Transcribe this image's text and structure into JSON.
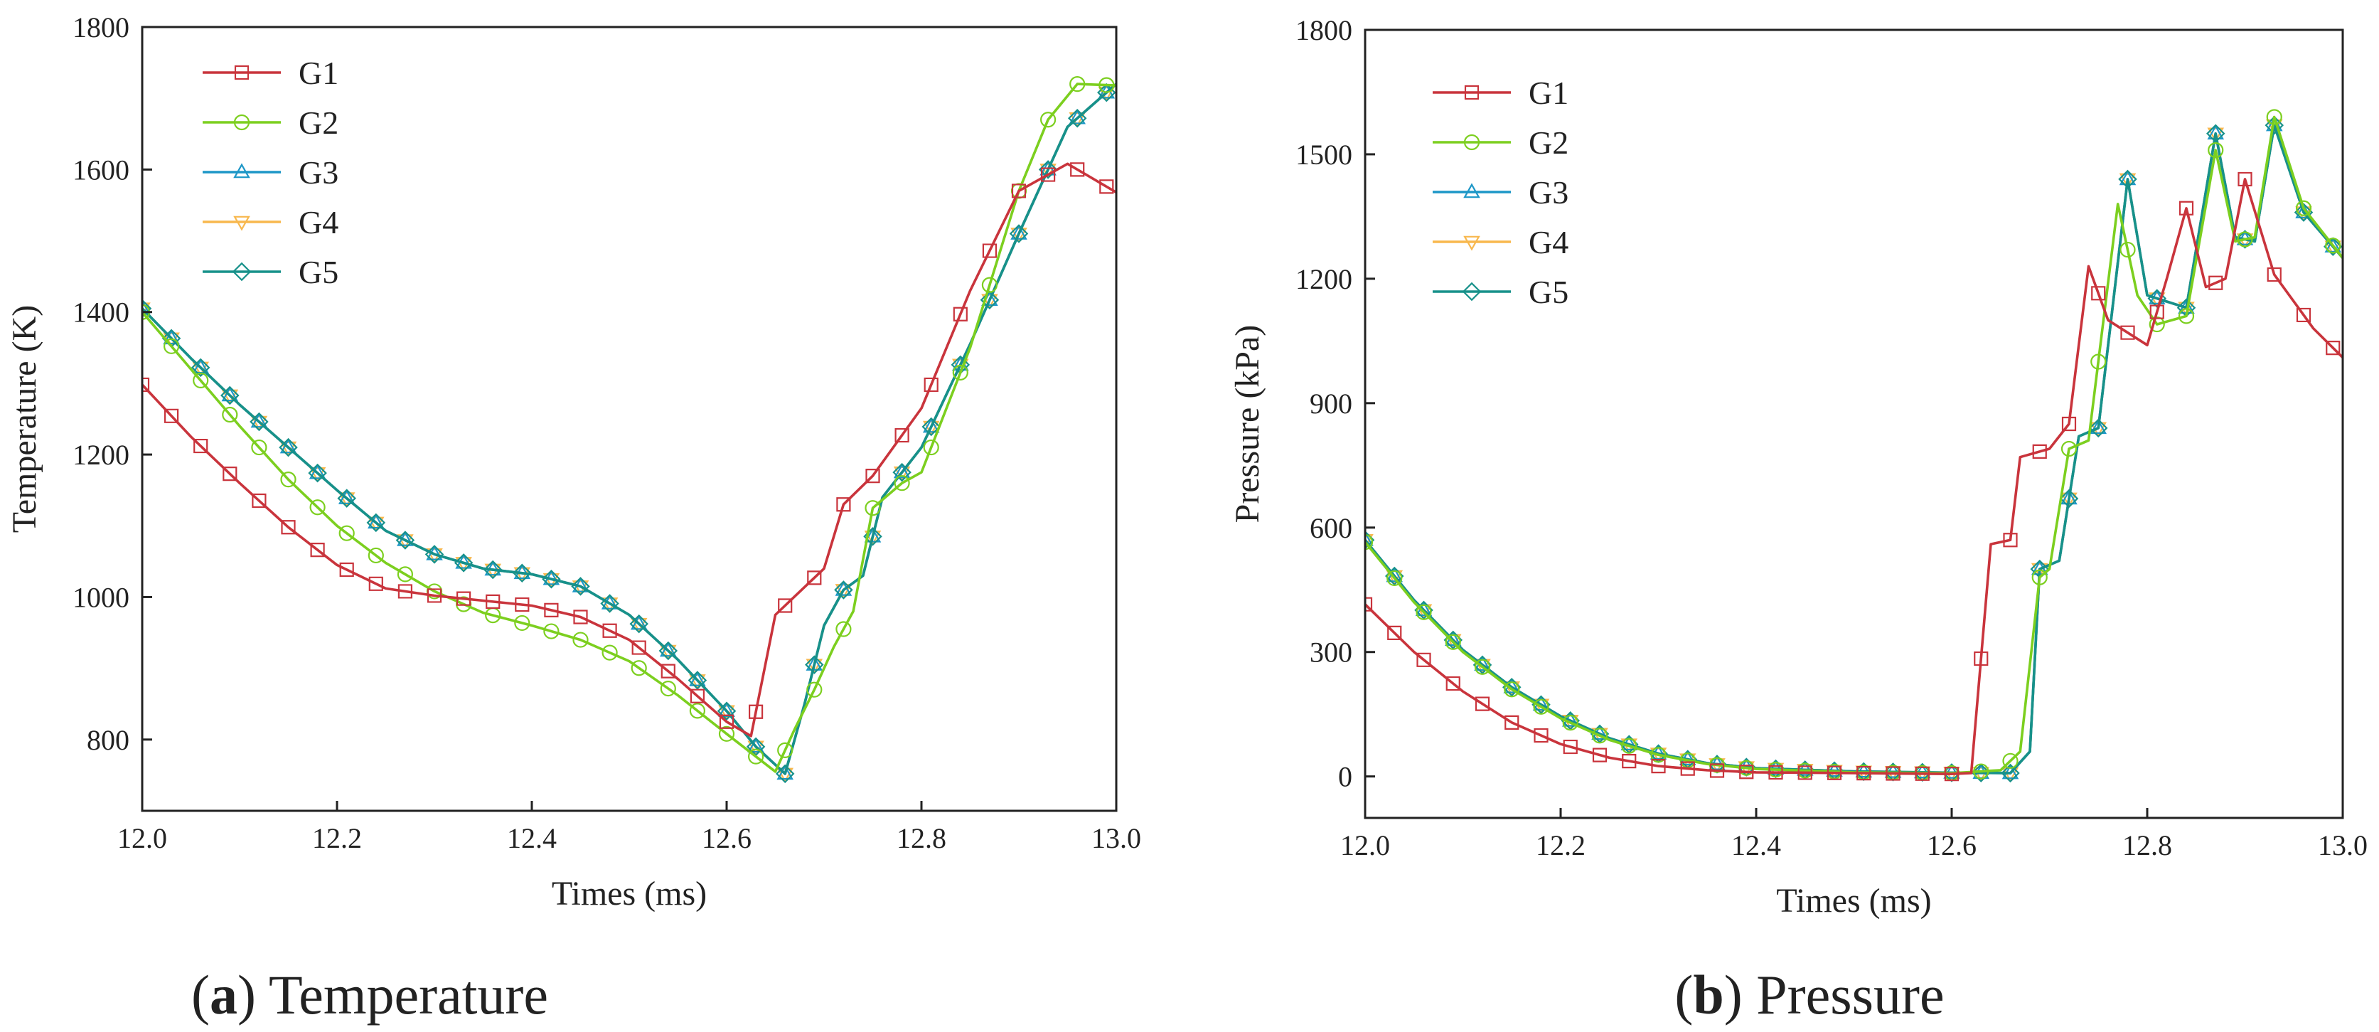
{
  "series_colors": {
    "G1": "#c9343c",
    "G2": "#7ccf1f",
    "G3": "#1d97c7",
    "G4": "#f8b84e",
    "G5": "#17918a"
  },
  "series_markers": {
    "G1": "square",
    "G2": "circle",
    "G3": "triangle-up",
    "G4": "triangle-down",
    "G5": "diamond"
  },
  "captions": {
    "a": {
      "letter": "a",
      "title": "Temperature"
    },
    "b": {
      "letter": "b",
      "title": "Pressure"
    }
  },
  "chart_data": [
    {
      "id": "a",
      "type": "line",
      "title": "(a) Temperature",
      "xlabel": "Times (ms)",
      "ylabel": "Temperature (K)",
      "xlim": [
        12.0,
        13.0
      ],
      "ylim": [
        700,
        1800
      ],
      "xticks": [
        "12.0",
        "12.2",
        "12.4",
        "12.6",
        "12.8",
        "13.0"
      ],
      "yticks": [
        "800",
        "1000",
        "1200",
        "1400",
        "1600",
        "1800"
      ],
      "legend": "top-left",
      "series": [
        {
          "name": "G1",
          "x": [
            12.0,
            12.05,
            12.1,
            12.15,
            12.2,
            12.25,
            12.3,
            12.35,
            12.4,
            12.45,
            12.5,
            12.55,
            12.6,
            12.625,
            12.65,
            12.7,
            12.72,
            12.75,
            12.8,
            12.85,
            12.9,
            12.95,
            13.0
          ],
          "y": [
            1298,
            1225,
            1160,
            1098,
            1045,
            1012,
            1002,
            995,
            988,
            972,
            940,
            885,
            825,
            805,
            975,
            1040,
            1130,
            1170,
            1265,
            1430,
            1570,
            1608,
            1568
          ]
        },
        {
          "name": "G2",
          "x": [
            12.0,
            12.05,
            12.1,
            12.15,
            12.2,
            12.25,
            12.3,
            12.35,
            12.4,
            12.45,
            12.5,
            12.55,
            12.6,
            12.65,
            12.67,
            12.69,
            12.71,
            12.73,
            12.75,
            12.78,
            12.8,
            12.85,
            12.9,
            12.93,
            12.96,
            13.0
          ],
          "y": [
            1400,
            1320,
            1240,
            1165,
            1100,
            1048,
            1008,
            978,
            960,
            940,
            910,
            862,
            808,
            755,
            815,
            870,
            930,
            980,
            1125,
            1160,
            1175,
            1350,
            1570,
            1670,
            1720,
            1718
          ]
        },
        {
          "name": "G3",
          "x": [
            12.0,
            12.05,
            12.1,
            12.15,
            12.2,
            12.25,
            12.3,
            12.35,
            12.4,
            12.45,
            12.5,
            12.55,
            12.6,
            12.63,
            12.66,
            12.68,
            12.7,
            12.72,
            12.74,
            12.76,
            12.8,
            12.85,
            12.9,
            12.95,
            13.0
          ],
          "y": [
            1405,
            1335,
            1270,
            1210,
            1150,
            1093,
            1060,
            1040,
            1032,
            1015,
            975,
            912,
            840,
            790,
            752,
            850,
            960,
            1010,
            1030,
            1140,
            1210,
            1355,
            1510,
            1660,
            1720
          ]
        },
        {
          "name": "G4",
          "x": [
            12.0,
            12.05,
            12.1,
            12.15,
            12.2,
            12.25,
            12.3,
            12.35,
            12.4,
            12.45,
            12.5,
            12.55,
            12.6,
            12.63,
            12.66,
            12.68,
            12.7,
            12.72,
            12.74,
            12.76,
            12.8,
            12.85,
            12.9,
            12.95,
            13.0
          ],
          "y": [
            1405,
            1335,
            1270,
            1210,
            1150,
            1093,
            1060,
            1040,
            1032,
            1015,
            975,
            912,
            840,
            790,
            752,
            850,
            960,
            1010,
            1030,
            1140,
            1210,
            1355,
            1510,
            1660,
            1720
          ]
        },
        {
          "name": "G5",
          "x": [
            12.0,
            12.05,
            12.1,
            12.15,
            12.2,
            12.25,
            12.3,
            12.35,
            12.4,
            12.45,
            12.5,
            12.55,
            12.6,
            12.63,
            12.66,
            12.68,
            12.7,
            12.72,
            12.74,
            12.76,
            12.8,
            12.85,
            12.9,
            12.95,
            13.0
          ],
          "y": [
            1405,
            1335,
            1270,
            1210,
            1150,
            1093,
            1060,
            1040,
            1032,
            1015,
            975,
            912,
            840,
            790,
            752,
            850,
            960,
            1010,
            1030,
            1140,
            1210,
            1355,
            1510,
            1660,
            1720
          ]
        }
      ]
    },
    {
      "id": "b",
      "type": "line",
      "title": "(b) Pressure",
      "xlabel": "Times (ms)",
      "ylabel": "Pressure (kPa)",
      "xlim": [
        12.0,
        13.0
      ],
      "ylim": [
        -100,
        1800
      ],
      "xticks": [
        "12.0",
        "12.2",
        "12.4",
        "12.6",
        "12.8",
        "13.0"
      ],
      "yticks": [
        "0",
        "300",
        "600",
        "900",
        "1200",
        "1500",
        "1800"
      ],
      "legend": "top-left",
      "series": [
        {
          "name": "G1",
          "x": [
            12.0,
            12.05,
            12.1,
            12.15,
            12.2,
            12.25,
            12.3,
            12.35,
            12.4,
            12.5,
            12.6,
            12.62,
            12.64,
            12.66,
            12.67,
            12.7,
            12.72,
            12.74,
            12.76,
            12.8,
            12.82,
            12.84,
            12.86,
            12.88,
            12.9,
            12.93,
            12.97,
            13.0
          ],
          "y": [
            415,
            300,
            205,
            130,
            78,
            45,
            25,
            15,
            10,
            8,
            6,
            8,
            560,
            570,
            770,
            790,
            850,
            1230,
            1100,
            1040,
            1200,
            1370,
            1180,
            1200,
            1440,
            1210,
            1080,
            1010
          ]
        },
        {
          "name": "G2",
          "x": [
            12.0,
            12.05,
            12.1,
            12.15,
            12.2,
            12.25,
            12.3,
            12.35,
            12.4,
            12.5,
            12.6,
            12.65,
            12.67,
            12.69,
            12.7,
            12.72,
            12.74,
            12.77,
            12.79,
            12.81,
            12.84,
            12.87,
            12.89,
            12.91,
            12.93,
            12.96,
            13.0
          ],
          "y": [
            565,
            420,
            300,
            210,
            140,
            88,
            52,
            30,
            18,
            10,
            8,
            15,
            60,
            480,
            500,
            790,
            810,
            1380,
            1160,
            1090,
            1110,
            1510,
            1290,
            1300,
            1590,
            1370,
            1250
          ]
        },
        {
          "name": "G3",
          "x": [
            12.0,
            12.05,
            12.1,
            12.15,
            12.2,
            12.25,
            12.3,
            12.35,
            12.4,
            12.5,
            12.6,
            12.66,
            12.68,
            12.69,
            12.71,
            12.73,
            12.75,
            12.78,
            12.8,
            12.84,
            12.87,
            12.89,
            12.91,
            12.93,
            12.96,
            13.0
          ],
          "y": [
            570,
            425,
            305,
            215,
            145,
            92,
            55,
            32,
            20,
            12,
            9,
            8,
            60,
            500,
            520,
            820,
            840,
            1440,
            1160,
            1130,
            1550,
            1300,
            1290,
            1570,
            1360,
            1250
          ]
        },
        {
          "name": "G4",
          "x": [
            12.0,
            12.05,
            12.1,
            12.15,
            12.2,
            12.25,
            12.3,
            12.35,
            12.4,
            12.5,
            12.6,
            12.66,
            12.68,
            12.69,
            12.71,
            12.73,
            12.75,
            12.78,
            12.8,
            12.84,
            12.87,
            12.89,
            12.91,
            12.93,
            12.96,
            13.0
          ],
          "y": [
            570,
            425,
            305,
            215,
            145,
            92,
            55,
            32,
            20,
            12,
            9,
            8,
            60,
            500,
            520,
            820,
            840,
            1440,
            1160,
            1130,
            1550,
            1300,
            1290,
            1570,
            1360,
            1250
          ]
        },
        {
          "name": "G5",
          "x": [
            12.0,
            12.05,
            12.1,
            12.15,
            12.2,
            12.25,
            12.3,
            12.35,
            12.4,
            12.5,
            12.6,
            12.66,
            12.68,
            12.69,
            12.71,
            12.73,
            12.75,
            12.78,
            12.8,
            12.84,
            12.87,
            12.89,
            12.91,
            12.93,
            12.96,
            13.0
          ],
          "y": [
            570,
            425,
            305,
            215,
            145,
            92,
            55,
            32,
            20,
            12,
            9,
            8,
            60,
            500,
            520,
            820,
            840,
            1440,
            1160,
            1130,
            1550,
            1300,
            1290,
            1570,
            1360,
            1250
          ]
        }
      ]
    }
  ]
}
